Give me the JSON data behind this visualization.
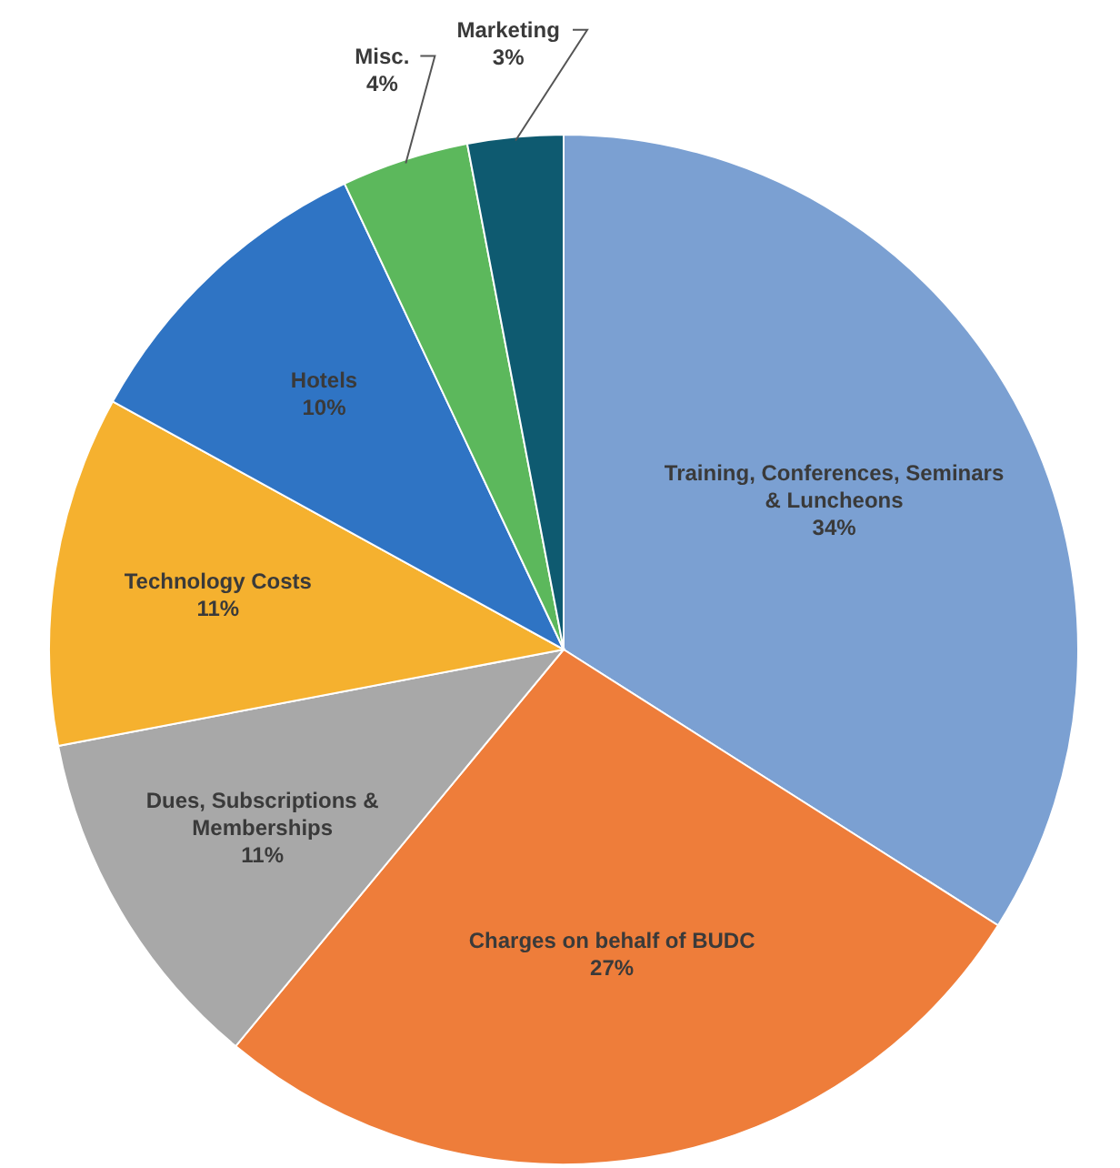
{
  "chart_data": {
    "type": "pie",
    "categories": [
      "Training, Conferences, Seminars & Luncheons",
      "Charges on behalf of BUDC",
      "Dues, Subscriptions & Memberships",
      "Technology Costs",
      "Hotels",
      "Misc.",
      "Marketing"
    ],
    "values": [
      34,
      27,
      11,
      11,
      10,
      4,
      3
    ],
    "value_labels": [
      "34%",
      "27%",
      "11%",
      "11%",
      "10%",
      "4%",
      "3%"
    ],
    "colors": [
      "#7ba0d2",
      "#ee7d3a",
      "#a8a8a8",
      "#f5b12f",
      "#2f74c4",
      "#5cb85c",
      "#0e5a70"
    ],
    "legend": false
  }
}
